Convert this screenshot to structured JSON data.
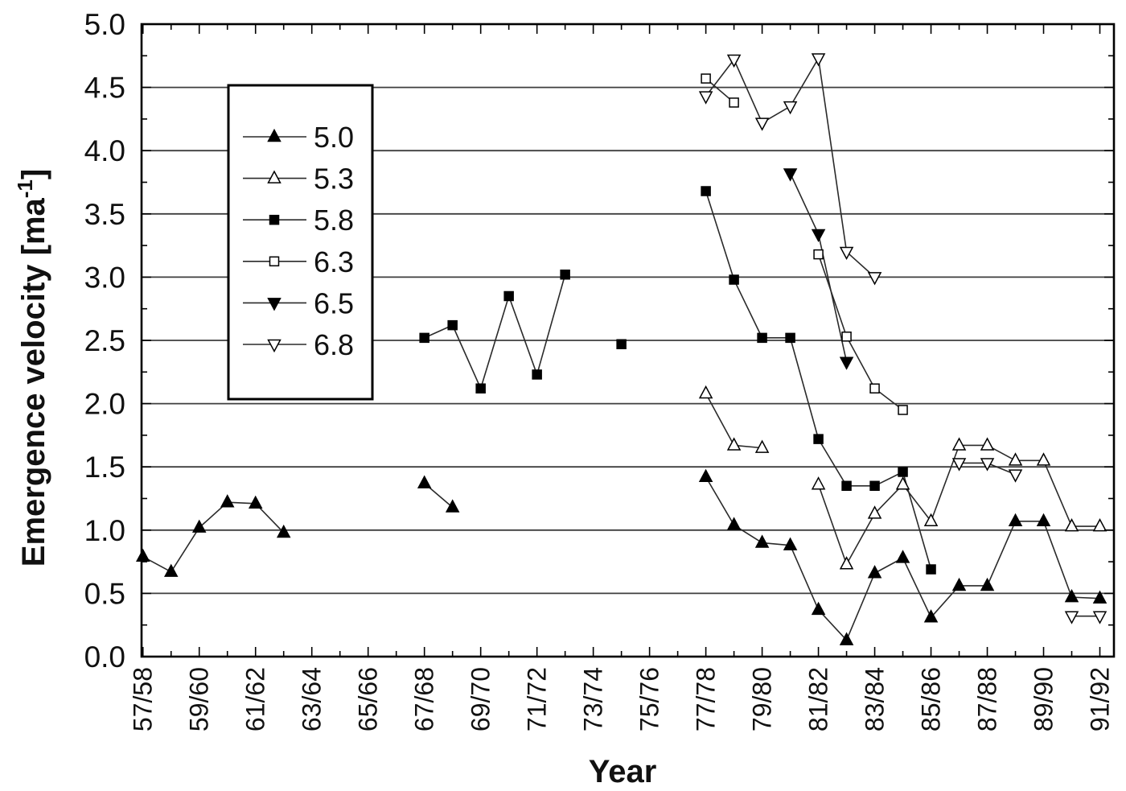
{
  "chart_data": {
    "type": "line",
    "xlabel": "Year",
    "ylabel": {
      "text": "Emergence velocity [ma",
      "superscript": "-1",
      "suffix": "]"
    },
    "x": [
      57,
      58,
      59,
      60,
      61,
      62,
      63,
      64,
      65,
      66,
      67,
      68,
      69,
      70,
      71,
      72,
      73,
      74,
      75,
      76,
      77,
      78,
      79,
      80,
      81,
      82,
      83,
      84,
      85,
      86,
      87,
      88,
      89,
      90,
      91
    ],
    "xlim": [
      56.95,
      91.5
    ],
    "xticks": [
      57,
      59,
      61,
      63,
      65,
      67,
      69,
      71,
      73,
      75,
      77,
      79,
      81,
      83,
      85,
      87,
      89,
      91
    ],
    "xtick_labels": [
      "57/58",
      "59/60",
      "61/62",
      "63/64",
      "65/66",
      "67/68",
      "69/70",
      "71/72",
      "73/74",
      "75/76",
      "77/78",
      "79/80",
      "81/82",
      "83/84",
      "85/86",
      "87/88",
      "89/90",
      "91/92"
    ],
    "ylim": [
      0,
      5
    ],
    "yticks": [
      0,
      0.5,
      1,
      1.5,
      2,
      2.5,
      3,
      3.5,
      4,
      4.5,
      5
    ],
    "ytick_labels": [
      "0.0",
      "0.5",
      "1.0",
      "1.5",
      "2.0",
      "2.5",
      "3.0",
      "3.5",
      "4.0",
      "4.5",
      "5.0"
    ],
    "grid": {
      "horizontal": true,
      "vertical": false
    },
    "legend_position": "upper-left",
    "series": [
      {
        "name": "5.0",
        "marker": "triangle-up",
        "filled": true,
        "values": [
          0.79,
          0.67,
          1.02,
          1.22,
          1.21,
          0.98,
          null,
          null,
          null,
          null,
          1.37,
          1.18,
          null,
          null,
          null,
          null,
          null,
          null,
          null,
          null,
          1.42,
          1.04,
          0.9,
          0.88,
          0.37,
          0.13,
          0.66,
          0.78,
          0.31,
          0.56,
          0.56,
          1.07,
          1.07,
          0.47,
          0.46
        ]
      },
      {
        "name": "5.3",
        "marker": "triangle-up",
        "filled": false,
        "values": [
          null,
          null,
          null,
          null,
          null,
          null,
          null,
          null,
          null,
          null,
          null,
          null,
          null,
          null,
          null,
          null,
          null,
          null,
          null,
          null,
          2.08,
          1.67,
          1.65,
          null,
          1.36,
          0.73,
          1.13,
          1.36,
          1.07,
          1.67,
          1.67,
          1.55,
          1.55,
          1.03,
          1.03
        ]
      },
      {
        "name": "5.8",
        "marker": "square",
        "filled": true,
        "values": [
          null,
          null,
          null,
          null,
          null,
          null,
          null,
          null,
          null,
          null,
          2.52,
          2.62,
          2.12,
          2.85,
          2.23,
          3.02,
          null,
          2.47,
          null,
          null,
          3.68,
          2.98,
          2.52,
          2.52,
          1.72,
          1.35,
          1.35,
          1.46,
          0.69,
          null,
          null,
          null,
          null,
          null,
          null
        ]
      },
      {
        "name": "6.3",
        "marker": "square",
        "filled": false,
        "values": [
          null,
          null,
          null,
          null,
          null,
          null,
          null,
          null,
          null,
          null,
          null,
          null,
          null,
          null,
          null,
          null,
          null,
          null,
          null,
          null,
          4.57,
          4.38,
          null,
          null,
          3.18,
          2.53,
          2.12,
          1.95,
          null,
          null,
          null,
          null,
          null,
          null,
          null
        ]
      },
      {
        "name": "6.5",
        "marker": "triangle-down",
        "filled": true,
        "values": [
          null,
          null,
          null,
          null,
          null,
          null,
          null,
          null,
          null,
          null,
          null,
          null,
          null,
          null,
          null,
          null,
          null,
          null,
          null,
          null,
          null,
          null,
          null,
          3.82,
          3.34,
          2.33,
          null,
          null,
          null,
          null,
          null,
          null,
          null,
          null,
          null
        ]
      },
      {
        "name": "6.8",
        "marker": "triangle-down",
        "filled": false,
        "values": [
          null,
          null,
          null,
          null,
          null,
          null,
          null,
          null,
          null,
          null,
          null,
          null,
          null,
          null,
          null,
          null,
          null,
          null,
          null,
          null,
          4.43,
          4.72,
          4.22,
          4.35,
          4.73,
          3.2,
          3.0,
          null,
          null,
          1.53,
          1.53,
          1.44,
          null,
          0.32,
          0.32
        ]
      }
    ]
  },
  "colors": {
    "background": "#ffffff",
    "line": "#2a2a2a",
    "marker": "#000000",
    "grid": "#3e3e3e",
    "frame": "#000000"
  }
}
